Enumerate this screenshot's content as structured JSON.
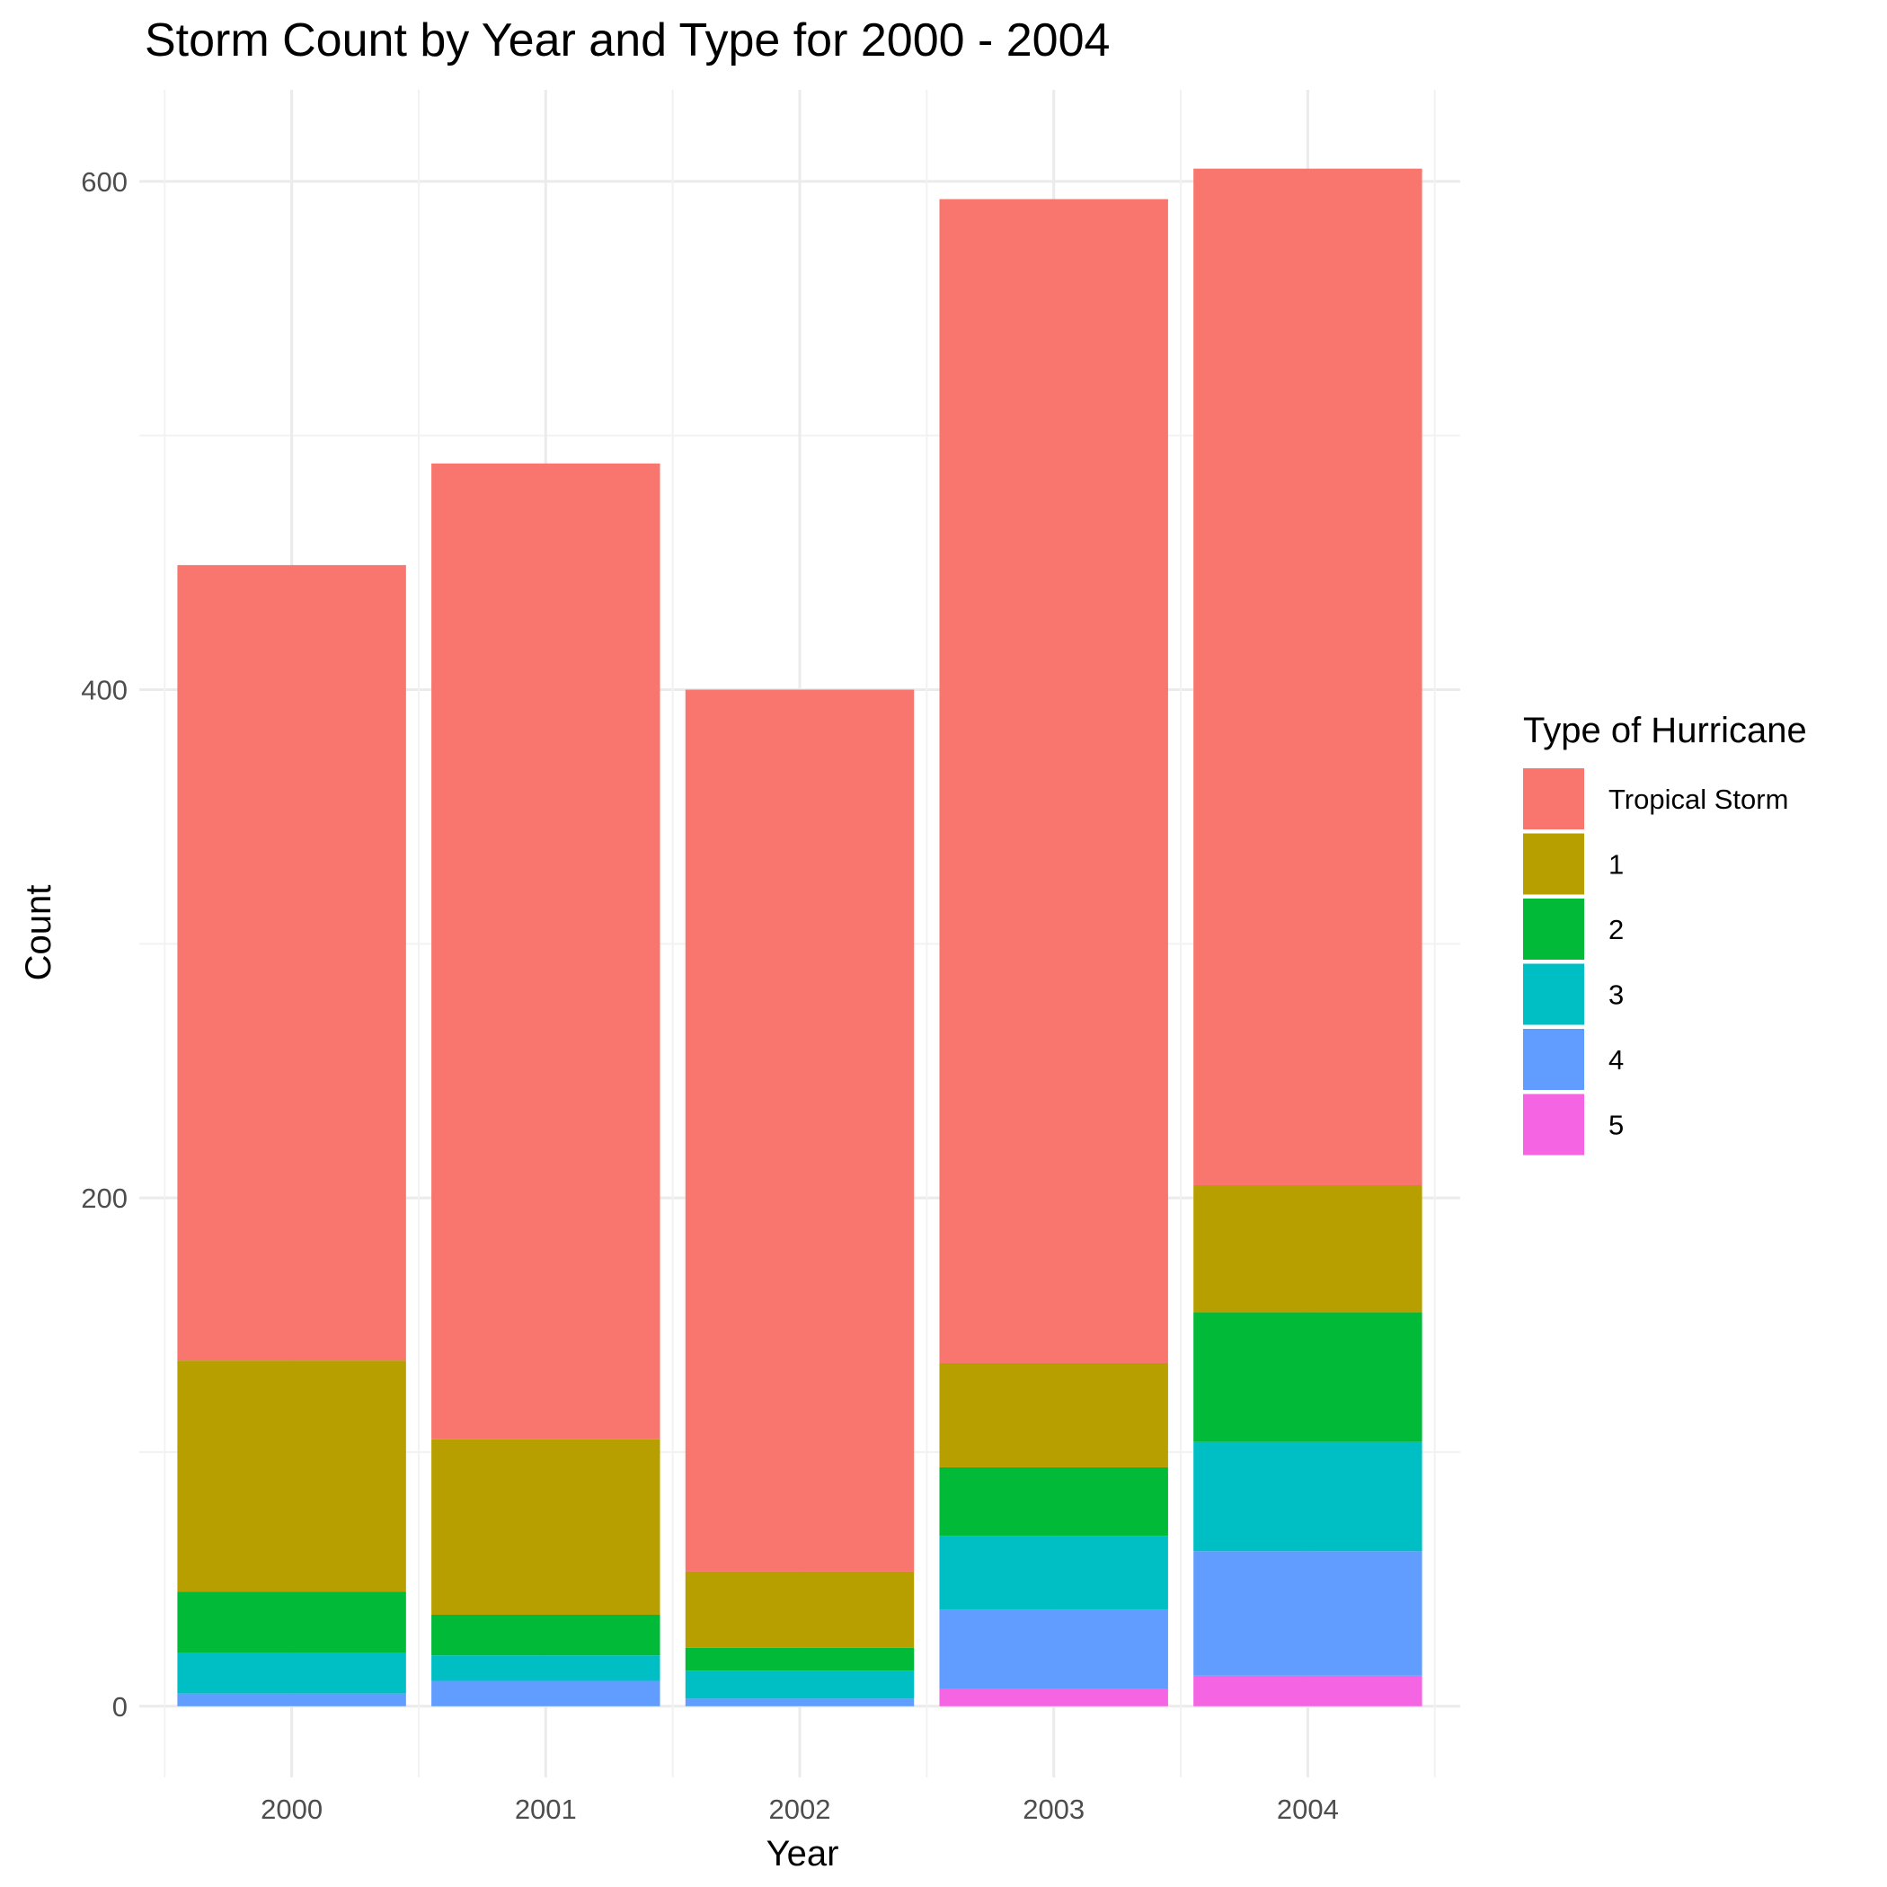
{
  "chart_data": {
    "type": "bar",
    "stacked": true,
    "title": "Storm Count by Year and Type for 2000 - 2004",
    "xlabel": "Year",
    "ylabel": "Count",
    "categories": [
      "2000",
      "2001",
      "2002",
      "2003",
      "2004"
    ],
    "ylim": [
      -28,
      636
    ],
    "yticks": [
      0,
      200,
      400,
      600
    ],
    "grid": true,
    "legend": {
      "title": "Type of Hurricane",
      "position": "right"
    },
    "series": [
      {
        "name": "5",
        "color": "#F564E3",
        "values": [
          0,
          0,
          0,
          7,
          12
        ]
      },
      {
        "name": "4",
        "color": "#619CFF",
        "values": [
          5,
          10,
          3,
          31,
          49
        ]
      },
      {
        "name": "3",
        "color": "#00BFC4",
        "values": [
          16,
          10,
          11,
          29,
          43
        ]
      },
      {
        "name": "2",
        "color": "#00BA38",
        "values": [
          24,
          16,
          9,
          27,
          51
        ]
      },
      {
        "name": "1",
        "color": "#B79F00",
        "values": [
          91,
          69,
          30,
          41,
          50
        ]
      },
      {
        "name": "Tropical Storm",
        "color": "#F8766D",
        "values": [
          313,
          384,
          347,
          458,
          400
        ]
      }
    ],
    "legend_order": [
      "Tropical Storm",
      "1",
      "2",
      "3",
      "4",
      "5"
    ]
  }
}
